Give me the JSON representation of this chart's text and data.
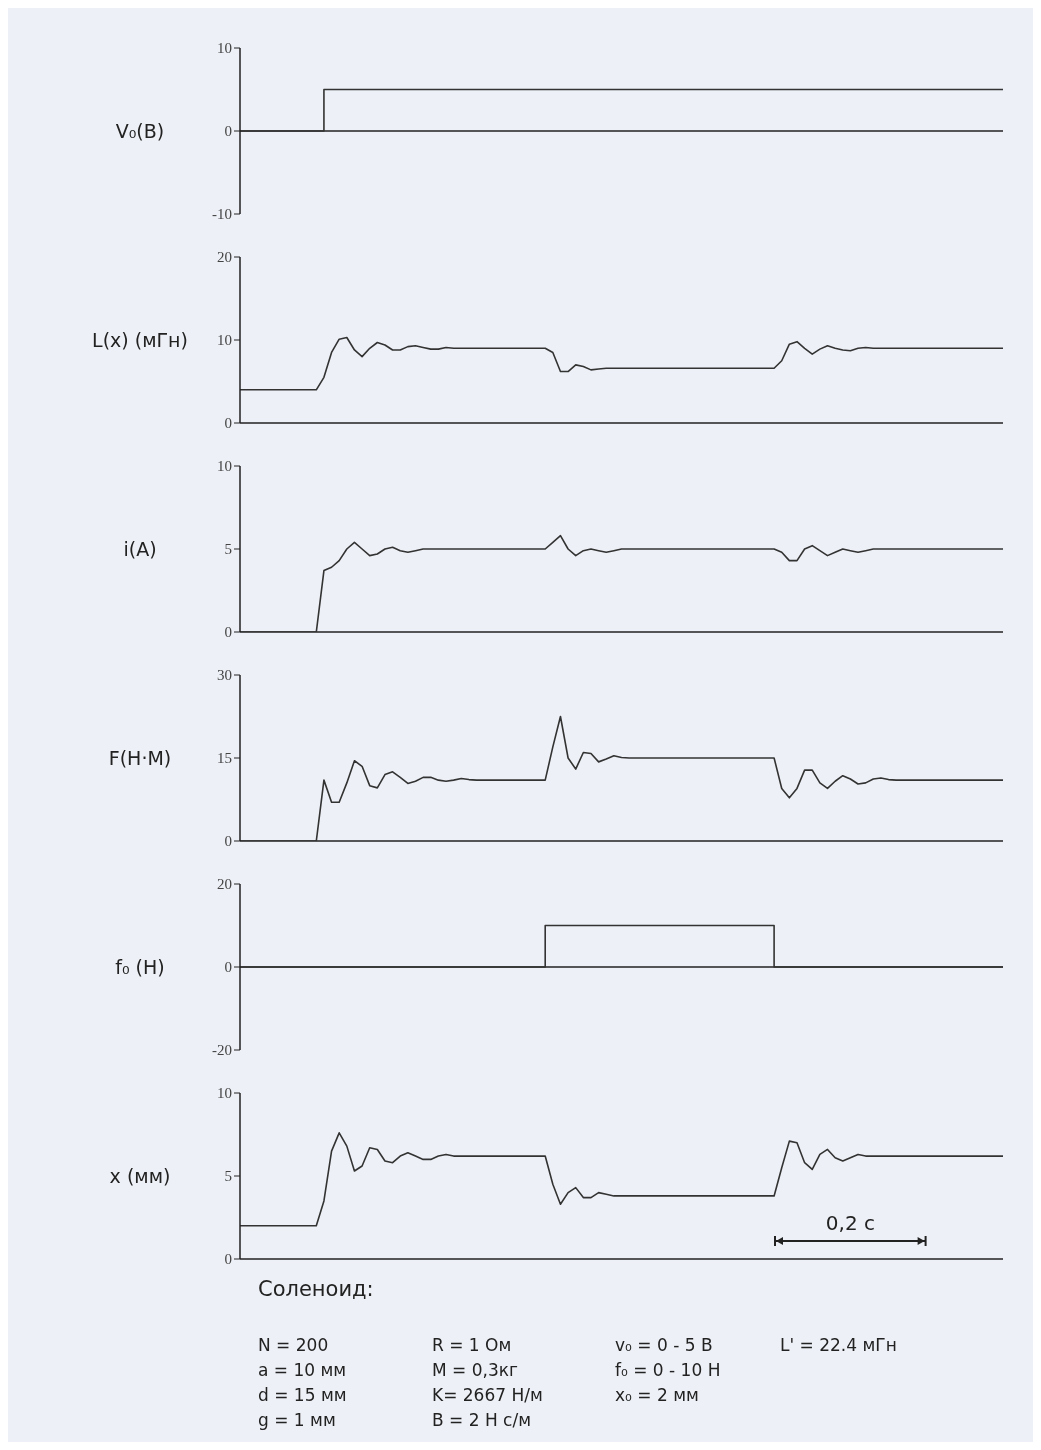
{
  "chart_data": [
    {
      "type": "step",
      "ylabel": "V₀(В)",
      "ylim": [
        -10,
        10
      ],
      "yticks": [
        -10,
        0,
        10
      ],
      "tick_labels": "y",
      "categories": [
        null,
        null,
        null,
        null,
        null,
        null,
        null,
        null,
        null,
        null,
        null,
        null,
        null,
        null,
        null,
        null,
        null,
        null,
        null,
        null,
        null,
        null,
        null,
        null,
        null,
        null,
        null,
        null,
        null,
        null,
        null,
        null,
        null,
        null,
        null,
        null,
        null,
        null,
        null,
        null,
        null,
        null,
        null,
        null,
        null,
        null,
        null,
        null,
        null,
        null,
        null,
        null,
        null,
        null,
        null,
        null,
        null,
        null,
        null,
        null,
        null,
        null,
        null,
        null,
        null,
        null,
        null,
        null,
        null,
        null,
        null,
        null,
        null,
        null,
        null,
        null,
        null,
        null,
        null,
        null,
        null,
        null,
        null,
        null,
        null,
        null,
        null,
        null,
        null,
        null,
        null,
        null,
        null,
        null,
        null,
        null,
        null,
        null,
        null,
        null,
        null
      ],
      "series": [
        {
          "color": "#333333",
          "values": [
            0,
            0,
            0,
            0,
            0,
            0,
            0,
            0,
            0,
            0,
            0,
            5,
            5,
            5,
            5,
            5,
            5,
            5,
            5,
            5,
            5,
            5,
            5,
            5,
            5,
            5,
            5,
            5,
            5,
            5,
            5,
            5,
            5,
            5,
            5,
            5,
            5,
            5,
            5,
            5,
            5,
            5,
            5,
            5,
            5,
            5,
            5,
            5,
            5,
            5,
            5,
            5,
            5,
            5,
            5,
            5,
            5,
            5,
            5,
            5,
            5,
            5,
            5,
            5,
            5,
            5,
            5,
            5,
            5,
            5,
            5,
            5,
            5,
            5,
            5,
            5,
            5,
            5,
            5,
            5,
            5,
            5,
            5,
            5,
            5,
            5,
            5,
            5,
            5,
            5,
            5,
            5,
            5,
            5,
            5,
            5,
            5,
            5,
            5,
            5,
            5
          ]
        }
      ]
    },
    {
      "type": "line",
      "ylabel": "L(x) (мГн)",
      "ylim": [
        0,
        20
      ],
      "yticks": [
        0,
        10,
        20
      ],
      "tick_labels": "y",
      "categories": [
        null,
        null,
        null,
        null,
        null,
        null,
        null,
        null,
        null,
        null,
        null,
        null,
        null,
        null,
        null,
        null,
        null,
        null,
        null,
        null,
        null,
        null,
        null,
        null,
        null,
        null,
        null,
        null,
        null,
        null,
        null,
        null,
        null,
        null,
        null,
        null,
        null,
        null,
        null,
        null,
        null,
        null,
        null,
        null,
        null,
        null,
        null,
        null,
        null,
        null,
        null,
        null,
        null,
        null,
        null,
        null,
        null,
        null,
        null,
        null,
        null,
        null,
        null,
        null,
        null,
        null,
        null,
        null,
        null,
        null,
        null,
        null,
        null,
        null,
        null,
        null,
        null,
        null,
        null,
        null,
        null,
        null,
        null,
        null,
        null,
        null,
        null,
        null,
        null,
        null,
        null,
        null,
        null,
        null,
        null,
        null,
        null,
        null,
        null,
        null,
        null
      ],
      "series": [
        {
          "color": "#333333",
          "values": [
            4,
            4,
            4,
            4,
            4,
            4,
            4,
            4,
            4,
            4,
            4,
            5.5,
            8.5,
            10.1,
            10.3,
            8.8,
            8,
            9,
            9.7,
            9.4,
            8.8,
            8.8,
            9.2,
            9.3,
            9.1,
            8.9,
            8.9,
            9.1,
            9,
            9,
            9,
            9,
            9,
            9,
            9,
            9,
            9,
            9,
            9,
            9,
            9,
            8.5,
            6.2,
            6.2,
            7,
            6.8,
            6.4,
            6.5,
            6.6,
            6.6,
            6.6,
            6.6,
            6.6,
            6.6,
            6.6,
            6.6,
            6.6,
            6.6,
            6.6,
            6.6,
            6.6,
            6.6,
            6.6,
            6.6,
            6.6,
            6.6,
            6.6,
            6.6,
            6.6,
            6.6,
            6.6,
            7.5,
            9.5,
            9.8,
            9,
            8.3,
            8.9,
            9.3,
            9,
            8.8,
            8.7,
            9,
            9.1,
            9,
            9,
            9,
            9,
            9,
            9,
            9,
            9,
            9,
            9,
            9,
            9,
            9,
            9,
            9,
            9,
            9,
            9
          ]
        }
      ]
    },
    {
      "type": "line",
      "ylabel": "i(A)",
      "ylim": [
        0,
        10
      ],
      "yticks": [
        0,
        5,
        10
      ],
      "tick_labels": "y",
      "categories": [
        null,
        null,
        null,
        null,
        null,
        null,
        null,
        null,
        null,
        null,
        null,
        null,
        null,
        null,
        null,
        null,
        null,
        null,
        null,
        null,
        null,
        null,
        null,
        null,
        null,
        null,
        null,
        null,
        null,
        null,
        null,
        null,
        null,
        null,
        null,
        null,
        null,
        null,
        null,
        null,
        null,
        null,
        null,
        null,
        null,
        null,
        null,
        null,
        null,
        null,
        null,
        null,
        null,
        null,
        null,
        null,
        null,
        null,
        null,
        null,
        null,
        null,
        null,
        null,
        null,
        null,
        null,
        null,
        null,
        null,
        null,
        null,
        null,
        null,
        null,
        null,
        null,
        null,
        null,
        null,
        null,
        null,
        null,
        null,
        null,
        null,
        null,
        null,
        null,
        null,
        null,
        null,
        null,
        null,
        null,
        null,
        null,
        null,
        null,
        null,
        null
      ],
      "series": [
        {
          "color": "#333333",
          "values": [
            0,
            0,
            0,
            0,
            0,
            0,
            0,
            0,
            0,
            0,
            0,
            3.7,
            3.9,
            4.3,
            5,
            5.4,
            5,
            4.6,
            4.7,
            5,
            5.1,
            4.9,
            4.8,
            4.9,
            5,
            5,
            5,
            5,
            5,
            5,
            5,
            5,
            5,
            5,
            5,
            5,
            5,
            5,
            5,
            5,
            5,
            5.4,
            5.8,
            5,
            4.6,
            4.9,
            5,
            4.9,
            4.8,
            4.9,
            5,
            5,
            5,
            5,
            5,
            5,
            5,
            5,
            5,
            5,
            5,
            5,
            5,
            5,
            5,
            5,
            5,
            5,
            5,
            5,
            5,
            4.8,
            4.3,
            4.3,
            5,
            5.2,
            4.9,
            4.6,
            4.8,
            5,
            4.9,
            4.8,
            4.9,
            5,
            5,
            5,
            5,
            5,
            5,
            5,
            5,
            5,
            5,
            5,
            5,
            5,
            5,
            5,
            5,
            5,
            5
          ]
        }
      ]
    },
    {
      "type": "line",
      "ylabel": "F(Н·М)",
      "ylim": [
        0,
        30
      ],
      "yticks": [
        0,
        15,
        30
      ],
      "tick_labels": "y",
      "categories": [
        null,
        null,
        null,
        null,
        null,
        null,
        null,
        null,
        null,
        null,
        null,
        null,
        null,
        null,
        null,
        null,
        null,
        null,
        null,
        null,
        null,
        null,
        null,
        null,
        null,
        null,
        null,
        null,
        null,
        null,
        null,
        null,
        null,
        null,
        null,
        null,
        null,
        null,
        null,
        null,
        null,
        null,
        null,
        null,
        null,
        null,
        null,
        null,
        null,
        null,
        null,
        null,
        null,
        null,
        null,
        null,
        null,
        null,
        null,
        null,
        null,
        null,
        null,
        null,
        null,
        null,
        null,
        null,
        null,
        null,
        null,
        null,
        null,
        null,
        null,
        null,
        null,
        null,
        null,
        null,
        null,
        null,
        null,
        null,
        null,
        null,
        null,
        null,
        null,
        null,
        null,
        null,
        null,
        null,
        null,
        null,
        null,
        null,
        null,
        null,
        null
      ],
      "series": [
        {
          "color": "#333333",
          "values": [
            0,
            0,
            0,
            0,
            0,
            0,
            0,
            0,
            0,
            0,
            0,
            11,
            7,
            7,
            10.5,
            14.5,
            13.5,
            10,
            9.6,
            12,
            12.5,
            11.5,
            10.4,
            10.8,
            11.5,
            11.5,
            11,
            10.8,
            11,
            11.3,
            11.1,
            11,
            11,
            11,
            11,
            11,
            11,
            11,
            11,
            11,
            11,
            17,
            22.5,
            15,
            13,
            16,
            15.8,
            14.3,
            14.8,
            15.4,
            15.1,
            15,
            15,
            15,
            15,
            15,
            15,
            15,
            15,
            15,
            15,
            15,
            15,
            15,
            15,
            15,
            15,
            15,
            15,
            15,
            15,
            9.5,
            7.8,
            9.5,
            12.8,
            12.8,
            10.5,
            9.5,
            10.8,
            11.8,
            11.2,
            10.3,
            10.5,
            11.2,
            11.4,
            11.1,
            11,
            11,
            11,
            11,
            11,
            11,
            11,
            11,
            11,
            11,
            11,
            11,
            11,
            11,
            11
          ]
        }
      ]
    },
    {
      "type": "step",
      "ylabel": "f₀ (Н)",
      "ylim": [
        -20,
        20
      ],
      "yticks": [
        -20,
        0,
        20
      ],
      "tick_labels": "y",
      "categories": [
        null,
        null,
        null,
        null,
        null,
        null,
        null,
        null,
        null,
        null,
        null,
        null,
        null,
        null,
        null,
        null,
        null,
        null,
        null,
        null,
        null,
        null,
        null,
        null,
        null,
        null,
        null,
        null,
        null,
        null,
        null,
        null,
        null,
        null,
        null,
        null,
        null,
        null,
        null,
        null,
        null,
        null,
        null,
        null,
        null,
        null,
        null,
        null,
        null,
        null,
        null,
        null,
        null,
        null,
        null,
        null,
        null,
        null,
        null,
        null,
        null,
        null,
        null,
        null,
        null,
        null,
        null,
        null,
        null,
        null,
        null,
        null,
        null,
        null,
        null,
        null,
        null,
        null,
        null,
        null,
        null,
        null,
        null,
        null,
        null,
        null,
        null,
        null,
        null,
        null,
        null,
        null,
        null,
        null,
        null,
        null,
        null,
        null,
        null,
        null,
        null
      ],
      "series": [
        {
          "color": "#333333",
          "values": [
            0,
            0,
            0,
            0,
            0,
            0,
            0,
            0,
            0,
            0,
            0,
            0,
            0,
            0,
            0,
            0,
            0,
            0,
            0,
            0,
            0,
            0,
            0,
            0,
            0,
            0,
            0,
            0,
            0,
            0,
            0,
            0,
            0,
            0,
            0,
            0,
            0,
            0,
            0,
            0,
            10,
            10,
            10,
            10,
            10,
            10,
            10,
            10,
            10,
            10,
            10,
            10,
            10,
            10,
            10,
            10,
            10,
            10,
            10,
            10,
            10,
            10,
            10,
            10,
            10,
            10,
            10,
            10,
            10,
            10,
            0,
            0,
            0,
            0,
            0,
            0,
            0,
            0,
            0,
            0,
            0,
            0,
            0,
            0,
            0,
            0,
            0,
            0,
            0,
            0,
            0,
            0,
            0,
            0,
            0,
            0,
            0,
            0,
            0,
            0,
            0
          ]
        }
      ]
    },
    {
      "type": "line",
      "ylabel": "x (мм)",
      "ylim": [
        0,
        10
      ],
      "yticks": [
        0,
        5,
        10
      ],
      "tick_labels": "y",
      "categories": [
        null,
        null,
        null,
        null,
        null,
        null,
        null,
        null,
        null,
        null,
        null,
        null,
        null,
        null,
        null,
        null,
        null,
        null,
        null,
        null,
        null,
        null,
        null,
        null,
        null,
        null,
        null,
        null,
        null,
        null,
        null,
        null,
        null,
        null,
        null,
        null,
        null,
        null,
        null,
        null,
        null,
        null,
        null,
        null,
        null,
        null,
        null,
        null,
        null,
        null,
        null,
        null,
        null,
        null,
        null,
        null,
        null,
        null,
        null,
        null,
        null,
        null,
        null,
        null,
        null,
        null,
        null,
        null,
        null,
        null,
        null,
        null,
        null,
        null,
        null,
        null,
        null,
        null,
        null,
        null,
        null,
        null,
        null,
        null,
        null,
        null,
        null,
        null,
        null,
        null,
        null,
        null,
        null,
        null,
        null,
        null,
        null,
        null,
        null,
        null,
        null
      ],
      "series": [
        {
          "color": "#333333",
          "values": [
            2,
            2,
            2,
            2,
            2,
            2,
            2,
            2,
            2,
            2,
            2,
            3.5,
            6.5,
            7.6,
            6.8,
            5.3,
            5.6,
            6.7,
            6.6,
            5.9,
            5.8,
            6.2,
            6.4,
            6.2,
            6,
            6,
            6.2,
            6.3,
            6.2,
            6.2,
            6.2,
            6.2,
            6.2,
            6.2,
            6.2,
            6.2,
            6.2,
            6.2,
            6.2,
            6.2,
            6.2,
            4.5,
            3.3,
            4,
            4.3,
            3.7,
            3.7,
            4,
            3.9,
            3.8,
            3.8,
            3.8,
            3.8,
            3.8,
            3.8,
            3.8,
            3.8,
            3.8,
            3.8,
            3.8,
            3.8,
            3.8,
            3.8,
            3.8,
            3.8,
            3.8,
            3.8,
            3.8,
            3.8,
            3.8,
            3.8,
            5.5,
            7.1,
            7,
            5.8,
            5.4,
            6.3,
            6.6,
            6.1,
            5.9,
            6.1,
            6.3,
            6.2,
            6.2,
            6.2,
            6.2,
            6.2,
            6.2,
            6.2,
            6.2,
            6.2,
            6.2,
            6.2,
            6.2,
            6.2,
            6.2,
            6.2,
            6.2,
            6.2,
            6.2,
            6.2
          ]
        }
      ],
      "annotations": [
        "0,2 с",
        "Соленоид:",
        "N = 200",
        "a = 10 мм",
        "d = 15 мм",
        "g = 1 мм",
        "R = 1 Ом",
        "M = 0,3кг",
        "K= 2667 Н/м",
        "B = 2 Н с/м",
        "v₀ = 0 - 5 В",
        "f₀ = 0 - 10 Н",
        "x₀ = 2 мм",
        "L' = 22.4 мГн"
      ]
    }
  ]
}
